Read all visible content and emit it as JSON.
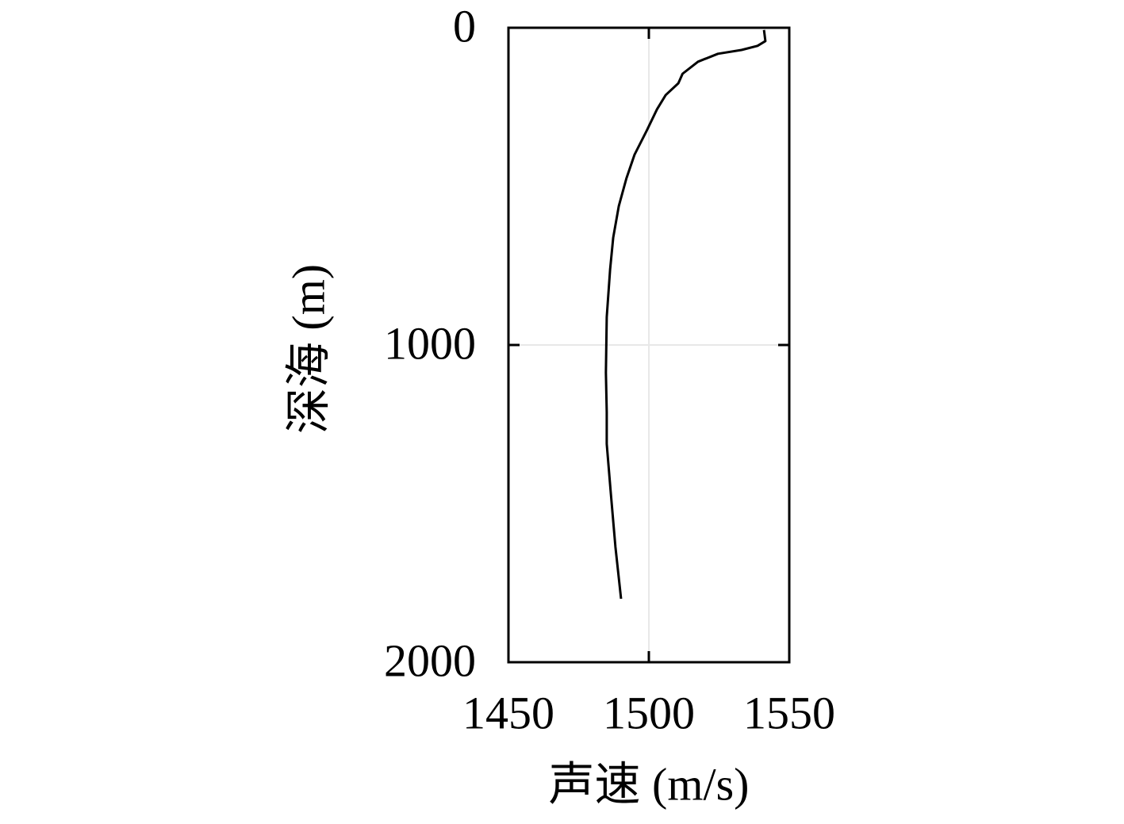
{
  "chart_data": {
    "type": "line",
    "x_label": "声速 (m/s)",
    "y_label": "深海 (m)",
    "xlim": [
      1450,
      1550
    ],
    "xticks": [
      1450,
      1500,
      1550
    ],
    "ylim": [
      0,
      2000
    ],
    "yticks": [
      0,
      1000,
      2000
    ],
    "y_inverted": true,
    "grid": true,
    "series": [
      {
        "color": "#000000",
        "x": [
          1541,
          1541.5,
          1538.7,
          1533,
          1524.6,
          1517.5,
          1512,
          1510.5,
          1506,
          1502.9,
          1499.2,
          1494.9,
          1492,
          1489.3,
          1487.3,
          1486.2,
          1485,
          1484.7,
          1485,
          1485,
          1486.4,
          1488.1,
          1490.1
        ],
        "values": [
          7,
          42,
          57,
          70,
          82,
          107,
          145,
          175,
          212,
          257,
          325,
          400,
          475,
          562,
          662,
          762,
          912,
          1087,
          1212,
          1312,
          1462,
          1637,
          1800
        ]
      }
    ]
  }
}
